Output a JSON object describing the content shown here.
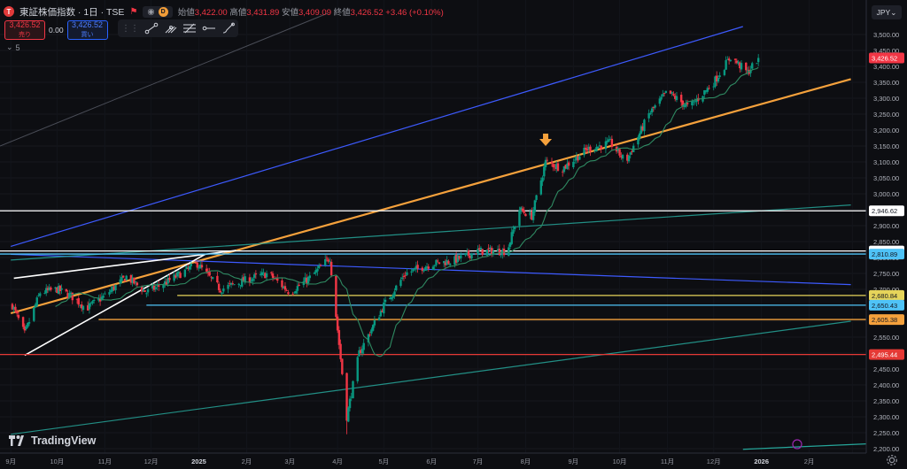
{
  "header": {
    "logo_letter": "T",
    "title": "東証株価指数 · 1日 · TSE",
    "chip_letter": "D",
    "open_label": "始値",
    "open": "3,422.00",
    "high_label": "高値",
    "high": "3,431.89",
    "low_label": "安値",
    "low": "3,409.09",
    "close_label": "終値",
    "close": "3,426.52",
    "change": "+3.46 (+0.10%)"
  },
  "trade": {
    "sell_price": "3,426.52",
    "sell_label": "売り",
    "spread": "0.00",
    "buy_price": "3,426.52",
    "buy_label": "買い"
  },
  "indicator_count": "5",
  "currency": "JPY",
  "brand": "TradingView",
  "price_axis": {
    "ticks": [
      "3,500.00",
      "3,450.00",
      "3,400.00",
      "3,350.00",
      "3,300.00",
      "3,250.00",
      "3,200.00",
      "3,150.00",
      "3,100.00",
      "3,050.00",
      "3,000.00",
      "2,950.00",
      "2,900.00",
      "2,850.00",
      "2,800.00",
      "2,750.00",
      "2,700.00",
      "2,650.00",
      "2,600.00",
      "2,550.00",
      "2,500.00",
      "2,450.00",
      "2,400.00",
      "2,350.00",
      "2,300.00",
      "2,250.00",
      "2,200.00"
    ]
  },
  "time_axis": {
    "labels": [
      "9月",
      "10月",
      "11月",
      "12月",
      "2025",
      "2月",
      "3月",
      "4月",
      "5月",
      "6月",
      "7月",
      "8月",
      "9月",
      "10月",
      "11月",
      "12月",
      "2026",
      "2月"
    ]
  },
  "colors": {
    "up": "#089981",
    "down": "#f23645",
    "orange": "#f5a13c",
    "blue": "#3d5afe",
    "teal": "#26a69a",
    "white": "#ffffff",
    "yellow": "#e6d45a",
    "cyan": "#4fc3f7",
    "red": "#e53935"
  },
  "chart_data": {
    "type": "candlestick",
    "symbol": "東証株価指数",
    "interval": "1日",
    "exchange": "TSE",
    "ylim": [
      2200,
      3525
    ],
    "last_price": 3426.52,
    "price_labels": [
      {
        "value": 3426.52,
        "text": "3,426.52",
        "color": "#f23645"
      },
      {
        "value": 2946.62,
        "text": "2,946.62",
        "color": "#ffffff"
      },
      {
        "value": 2820.4,
        "text": "2,820.40",
        "color": "#ffffff"
      },
      {
        "value": 2810.89,
        "text": "2,810.89",
        "color": "#4fc3f7"
      },
      {
        "value": 2680.84,
        "text": "2,680.84",
        "color": "#e6d45a"
      },
      {
        "value": 2650.43,
        "text": "2,650.43",
        "color": "#4fc3f7"
      },
      {
        "value": 2605.38,
        "text": "2,605.38",
        "color": "#f5a13c"
      },
      {
        "value": 2495.44,
        "text": "2,495.44",
        "color": "#e53935"
      }
    ],
    "price_path": [
      [
        "2024-09-02",
        2650
      ],
      [
        "2024-09-10",
        2560
      ],
      [
        "2024-09-20",
        2690
      ],
      [
        "2024-10-01",
        2700
      ],
      [
        "2024-10-10",
        2680
      ],
      [
        "2024-10-20",
        2640
      ],
      [
        "2024-11-01",
        2680
      ],
      [
        "2024-11-15",
        2740
      ],
      [
        "2024-11-28",
        2690
      ],
      [
        "2024-12-10",
        2720
      ],
      [
        "2024-12-31",
        2780
      ],
      [
        "2025-01-15",
        2700
      ],
      [
        "2025-02-01",
        2730
      ],
      [
        "2025-02-15",
        2750
      ],
      [
        "2025-03-01",
        2690
      ],
      [
        "2025-03-15",
        2740
      ],
      [
        "2025-03-27",
        2800
      ],
      [
        "2025-04-07",
        2300
      ],
      [
        "2025-04-15",
        2500
      ],
      [
        "2025-05-01",
        2650
      ],
      [
        "2025-05-15",
        2750
      ],
      [
        "2025-06-01",
        2780
      ],
      [
        "2025-06-15",
        2790
      ],
      [
        "2025-07-01",
        2820
      ],
      [
        "2025-07-20",
        2820
      ],
      [
        "2025-07-28",
        2950
      ],
      [
        "2025-08-05",
        2930
      ],
      [
        "2025-08-14",
        3100
      ],
      [
        "2025-08-25",
        3080
      ],
      [
        "2025-09-10",
        3140
      ],
      [
        "2025-09-25",
        3160
      ],
      [
        "2025-10-05",
        3100
      ],
      [
        "2025-10-20",
        3250
      ],
      [
        "2025-11-01",
        3320
      ],
      [
        "2025-11-15",
        3270
      ],
      [
        "2025-12-01",
        3350
      ],
      [
        "2025-12-12",
        3430
      ],
      [
        "2025-12-23",
        3380
      ],
      [
        "2025-12-30",
        3426.52
      ]
    ],
    "trendlines": [
      {
        "color": "orange",
        "from": [
          "2024-09-01",
          2625
        ],
        "to": [
          "2026-02-28",
          3360
        ]
      },
      {
        "color": "blue",
        "from": [
          "2024-09-01",
          2835
        ],
        "to": [
          "2025-12-20",
          3525
        ]
      },
      {
        "color": "blue",
        "from": [
          "2024-09-01",
          2810
        ],
        "to": [
          "2026-02-28",
          2715
        ]
      },
      {
        "color": "teal",
        "from": [
          "2024-09-01",
          2245
        ],
        "to": [
          "2026-02-28",
          2600
        ]
      },
      {
        "color": "teal",
        "from": [
          "2024-09-01",
          2792
        ],
        "to": [
          "2026-02-28",
          2965
        ]
      },
      {
        "color": "white",
        "from": [
          "2024-09-10",
          2493
        ],
        "to": [
          "2025-01-05",
          2810
        ]
      },
      {
        "color": "white",
        "from": [
          "2024-09-03",
          2735
        ],
        "to": [
          "2025-01-25",
          2822
        ]
      }
    ],
    "horizontal_levels": [
      2946.62,
      2820.4,
      2810.89,
      2680.84,
      2650.43,
      2605.38,
      2495.44
    ],
    "marker": {
      "type": "arrow-down",
      "date": "2025-08-14",
      "value": 3150
    }
  }
}
